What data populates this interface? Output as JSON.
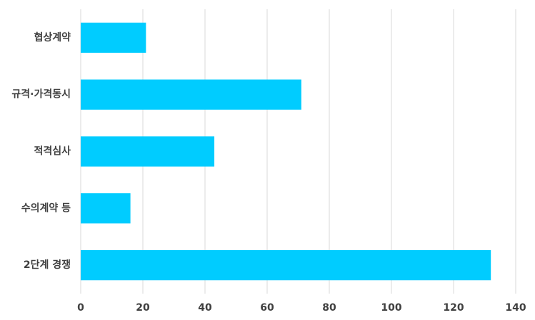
{
  "chart_data": {
    "type": "bar",
    "orientation": "horizontal",
    "categories": [
      "협상계약",
      "규격·가격동시",
      "적격심사",
      "수의계약 등",
      "2단계 경쟁"
    ],
    "values": [
      21,
      71,
      43,
      16,
      132
    ],
    "color": "#00ccff",
    "xlim": [
      0,
      140
    ],
    "xticks": [
      0,
      20,
      40,
      60,
      80,
      100,
      120,
      140
    ],
    "grid": true
  }
}
